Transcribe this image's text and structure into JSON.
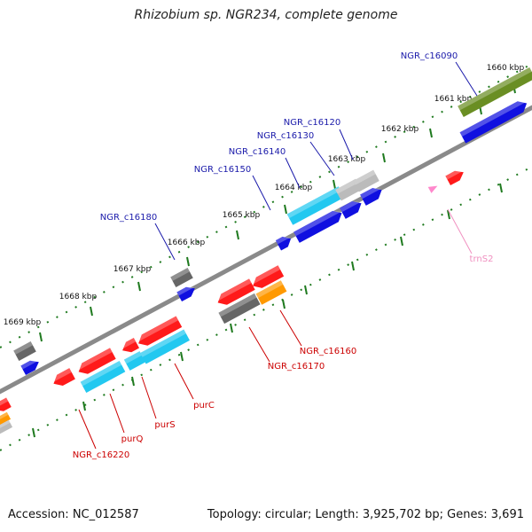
{
  "title": "Rhizobium sp. NGR234, complete genome",
  "footer": {
    "accession": "Accession: NC_012587",
    "summary": "Topology: circular; Length: 3,925,702 bp; Genes: 3,691"
  },
  "colors": {
    "backbone": "#8a8a8a",
    "tick": "#1f7a1f",
    "forward_label": "#1a1aaa",
    "reverse_label": "#cc0000",
    "trna_label": "#f090c0",
    "red": "#ff1a1a",
    "blue": "#1010e0",
    "cyan": "#22c8f0",
    "gray": "#666666",
    "lightgray": "#bbbbbb",
    "olive": "#6a8e23",
    "orange": "#ff9900",
    "pink": "#ff88cc"
  },
  "kbp_labels": [
    "1660 kbp",
    "1661 kbp",
    "1662 kbp",
    "1663 kbp",
    "1664 kbp",
    "1665 kbp",
    "1666 kbp",
    "1667 kbp",
    "1668 kbp",
    "1669 kbp"
  ],
  "gene_labels": {
    "forward": [
      "NGR_c16090",
      "NGR_c16120",
      "NGR_c16130",
      "NGR_c16140",
      "NGR_c16150",
      "NGR_c16180"
    ],
    "reverse": [
      "NGR_c16160",
      "NGR_c16170",
      "purC",
      "purS",
      "purQ",
      "NGR_c16220"
    ],
    "trna": [
      "trnS2"
    ]
  }
}
